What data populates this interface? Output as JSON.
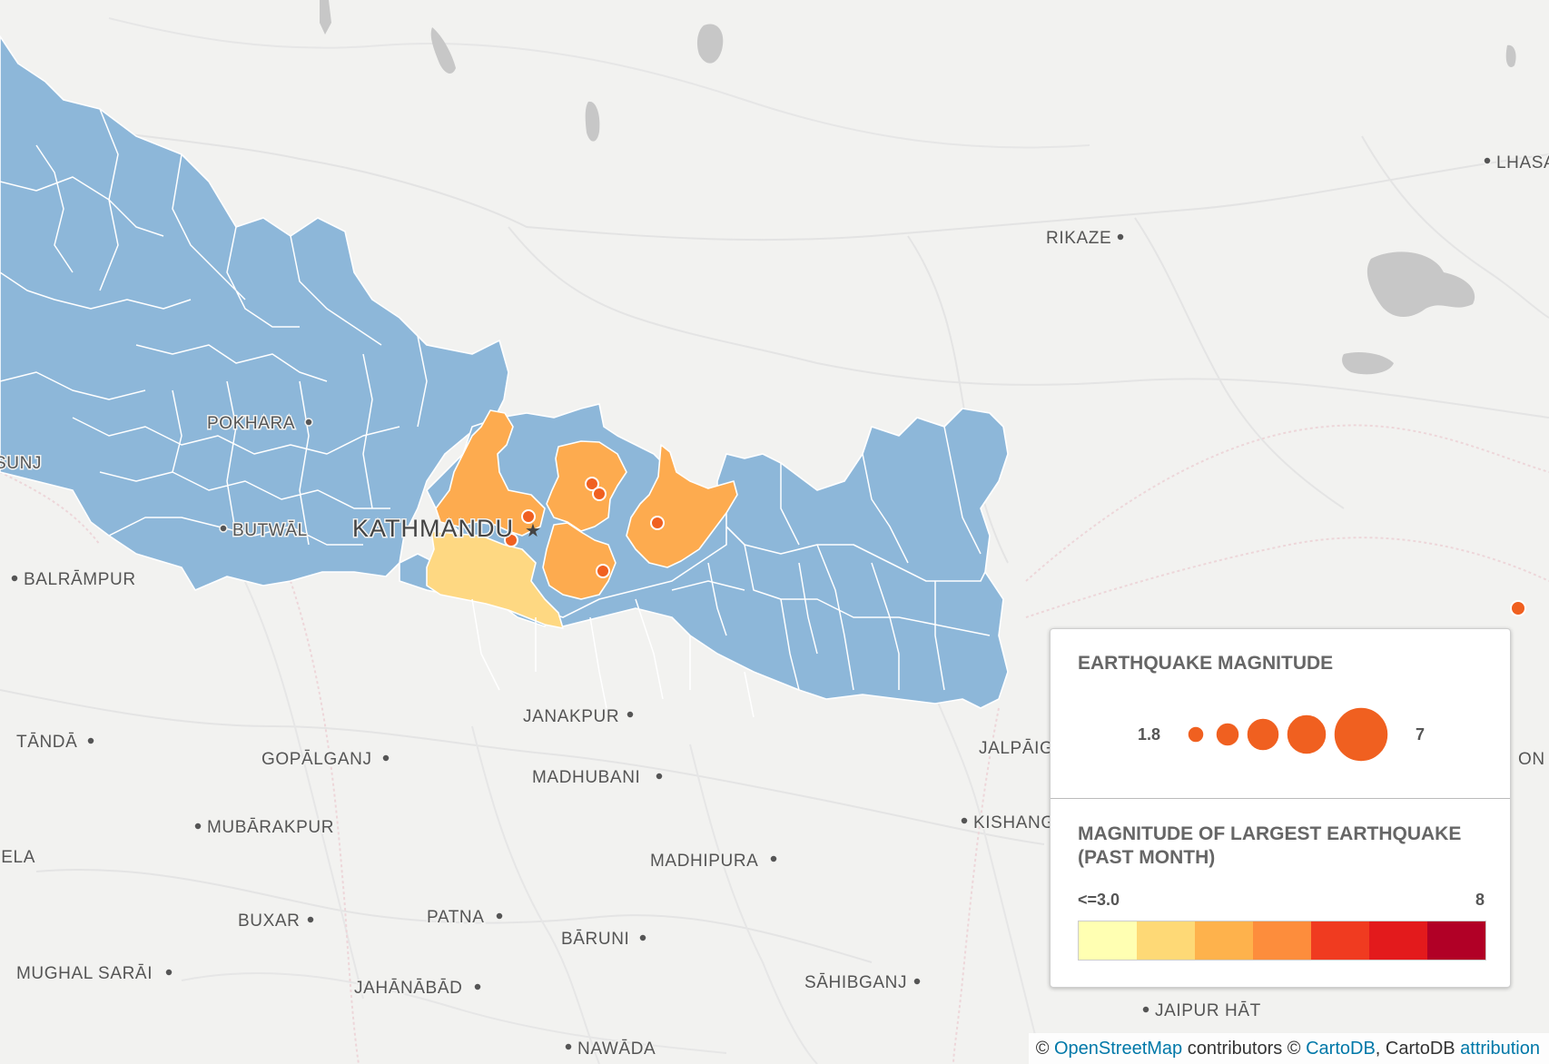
{
  "colors": {
    "land": "#f2f2f0",
    "district_default": "#8db7d9",
    "mag_high": "#fdab4f",
    "mag_low": "#fed882",
    "quake_dot": "#f06020"
  },
  "cities": [
    {
      "id": "lhasa",
      "label": "LHASA"
    },
    {
      "id": "rikaze",
      "label": "RIKAZE"
    },
    {
      "id": "pokhara",
      "label": "POKHARA"
    },
    {
      "id": "sunj",
      "label": "SUNJ"
    },
    {
      "id": "butwal",
      "label": "BUTWĀL"
    },
    {
      "id": "kathmandu",
      "label": "KATHMANDU"
    },
    {
      "id": "balrampur",
      "label": "BALRĀMPUR"
    },
    {
      "id": "janakpur",
      "label": "JANAKPUR"
    },
    {
      "id": "tanda",
      "label": "TĀNDĀ"
    },
    {
      "id": "gopalganj",
      "label": "GOPĀLGANJ"
    },
    {
      "id": "madhubani",
      "label": "MADHUBANI"
    },
    {
      "id": "jalpaiguri",
      "label": "JALPĀIG"
    },
    {
      "id": "on",
      "label": "ON"
    },
    {
      "id": "mubarakpur",
      "label": "MUBĀRAKPUR"
    },
    {
      "id": "kishanganj",
      "label": "KISHANG"
    },
    {
      "id": "bela",
      "label": "BELA"
    },
    {
      "id": "madhipura",
      "label": "MADHIPURA"
    },
    {
      "id": "buxar",
      "label": "BUXAR"
    },
    {
      "id": "patna",
      "label": "PATNA"
    },
    {
      "id": "baruni",
      "label": "BĀRUNI"
    },
    {
      "id": "mughal_sarai",
      "label": "MUGHAL SARĀI"
    },
    {
      "id": "jahanabad",
      "label": "JAHĀNĀBĀD"
    },
    {
      "id": "sahibganj",
      "label": "SĀHIBGANJ"
    },
    {
      "id": "jaipur_hat",
      "label": "JAIPUR HĀT"
    },
    {
      "id": "nawada",
      "label": "NAWĀDA"
    }
  ],
  "legend": {
    "bubble_title": "EARTHQUAKE MAGNITUDE",
    "bubble_min": "1.8",
    "bubble_max": "7",
    "choropleth_title_line1": "MAGNITUDE OF LARGEST EARTHQUAKE",
    "choropleth_title_line2": "(PAST MONTH)",
    "ramp_min": "<=3.0",
    "ramp_max": "8",
    "ramp_colors": [
      "#ffffb2",
      "#fed976",
      "#feb24c",
      "#fd8d3c",
      "#f03b20",
      "#e31a1c",
      "#b10026"
    ]
  },
  "attribution": {
    "prefix": "© ",
    "osm_link": "OpenStreetMap",
    "middle": " contributors © ",
    "carto_link": "CartoDB",
    "suffix": ", CartoDB ",
    "attr_link": "attribution"
  }
}
